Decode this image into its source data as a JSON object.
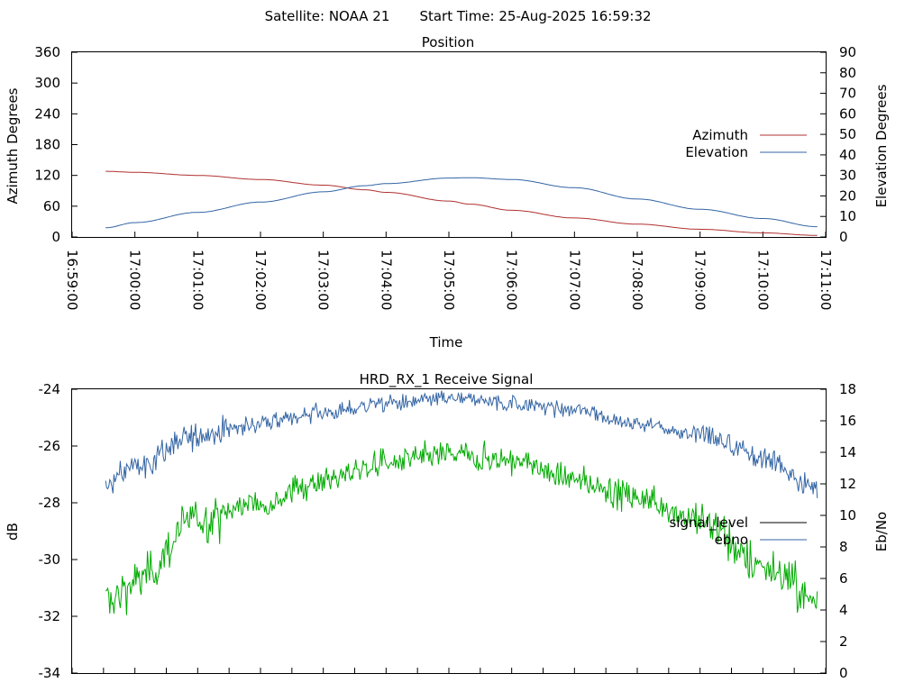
{
  "header": {
    "satellite_label": "Satellite: NOAA 21",
    "start_label": "Start Time: 25-Aug-2025 16:59:32"
  },
  "colors": {
    "azimuth": "#b03030",
    "elevation": "#3465a4",
    "signal_level_key": "#000000",
    "signal_green": "#00aa00",
    "ebno": "#3465a4"
  },
  "chart_data": [
    {
      "type": "line",
      "title": "Position",
      "xlabel": "Time",
      "ylabel": "Azimuth Degrees",
      "y2label": "Elevation Degrees",
      "xlim": [
        "16:59:00",
        "17:11:00"
      ],
      "ylim": [
        0,
        360
      ],
      "y2lim": [
        0,
        90
      ],
      "x_ticks": [
        "16:59:00",
        "17:00:00",
        "17:01:00",
        "17:02:00",
        "17:03:00",
        "17:04:00",
        "17:05:00",
        "17:06:00",
        "17:07:00",
        "17:08:00",
        "17:09:00",
        "17:10:00",
        "17:11:00"
      ],
      "y_ticks": [
        "0",
        "60",
        "120",
        "180",
        "240",
        "300",
        "360"
      ],
      "y2_ticks": [
        "0",
        "10",
        "20",
        "30",
        "40",
        "50",
        "60",
        "70",
        "80",
        "90"
      ],
      "legend_position": "right",
      "x": [
        "16:59:32",
        "17:00:00",
        "17:01:00",
        "17:02:00",
        "17:03:00",
        "17:03:40",
        "17:04:00",
        "17:05:00",
        "17:05:20",
        "17:06:00",
        "17:07:00",
        "17:08:00",
        "17:09:00",
        "17:10:00",
        "17:10:52"
      ],
      "series": [
        {
          "name": "Azimuth",
          "axis": "left",
          "values": [
            128,
            126,
            120,
            112,
            101,
            92,
            87,
            70,
            64,
            52,
            37,
            25,
            15,
            8,
            3
          ]
        },
        {
          "name": "Elevation",
          "axis": "right",
          "values": [
            4.5,
            7,
            12,
            17,
            22,
            25,
            26,
            28.7,
            28.9,
            28,
            24,
            18.5,
            13.5,
            9,
            5
          ]
        }
      ]
    },
    {
      "type": "line",
      "title": "HRD_RX_1 Receive Signal",
      "ylabel": "dB",
      "y2label": "Eb/No",
      "ylim": [
        -34,
        -24
      ],
      "y2lim": [
        0,
        18
      ],
      "y_ticks": [
        "-24",
        "-26",
        "-28",
        "-30",
        "-32",
        "-34"
      ],
      "y2_ticks": [
        "18",
        "16",
        "14",
        "12",
        "10",
        "8",
        "6",
        "4",
        "2",
        "0"
      ],
      "legend_position": "right",
      "x": [
        "16:59:32",
        "17:00:00",
        "17:01:00",
        "17:02:00",
        "17:03:00",
        "17:04:00",
        "17:05:00",
        "17:06:00",
        "17:07:00",
        "17:08:00",
        "17:09:00",
        "17:10:00",
        "17:10:52"
      ],
      "series": [
        {
          "name": "signal_level",
          "axis": "left",
          "values": [
            -31.5,
            -30.8,
            -28.6,
            -28.0,
            -27.2,
            -26.6,
            -26.3,
            -26.5,
            -27.2,
            -27.8,
            -28.6,
            -30.2,
            -31.5
          ]
        },
        {
          "name": "ebno",
          "axis": "right",
          "values": [
            11.9,
            13.1,
            15.1,
            15.8,
            16.5,
            17.1,
            17.4,
            17.1,
            16.7,
            15.8,
            15.1,
            13.6,
            11.8
          ]
        }
      ]
    }
  ]
}
